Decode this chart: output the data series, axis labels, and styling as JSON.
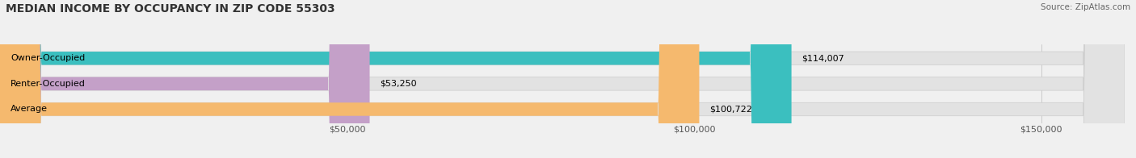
{
  "title": "MEDIAN INCOME BY OCCUPANCY IN ZIP CODE 55303",
  "source": "Source: ZipAtlas.com",
  "categories": [
    "Owner-Occupied",
    "Renter-Occupied",
    "Average"
  ],
  "values": [
    114007,
    53250,
    100722
  ],
  "bar_colors": [
    "#3BBFBF",
    "#C4A0C8",
    "#F5B96E"
  ],
  "bar_labels": [
    "$114,007",
    "$53,250",
    "$100,722"
  ],
  "xlim": [
    0,
    162000
  ],
  "xticks": [
    0,
    50000,
    100000,
    150000
  ],
  "xticklabels": [
    "$50,000",
    "$100,000",
    "$150,000"
  ],
  "background_color": "#f0f0f0",
  "bar_background_color": "#e2e2e2",
  "title_fontsize": 10,
  "source_fontsize": 7.5,
  "label_fontsize": 8,
  "bar_height": 0.52
}
